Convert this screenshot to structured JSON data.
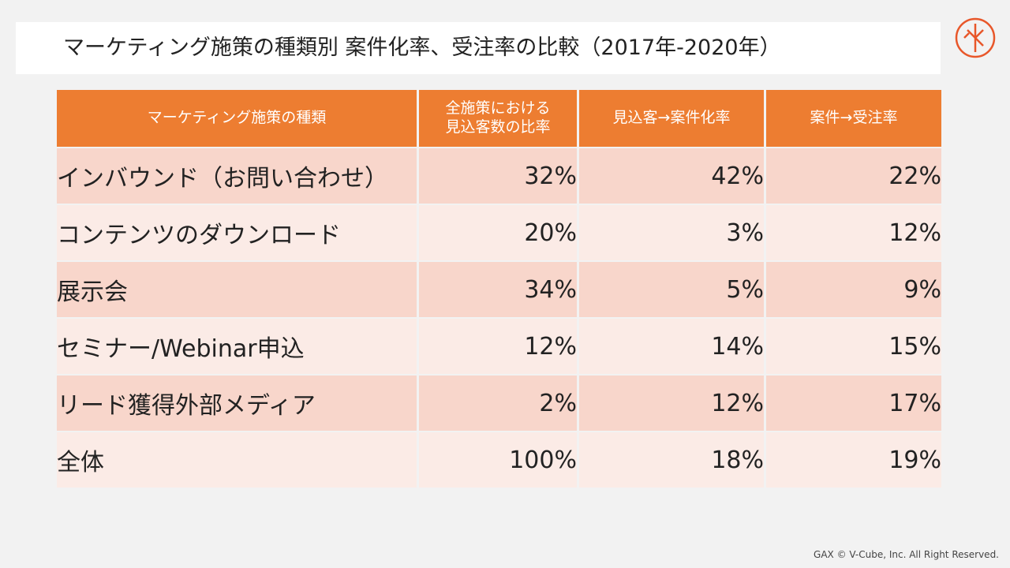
{
  "title": "マーケティング施策の種類別 案件化率、受注率の比較（2017年-2020年）",
  "logo": {
    "icon": "circle-monogram-logo",
    "color": "#e8572a"
  },
  "table": {
    "headers": [
      "マーケティング施策の種類",
      "全施策における見込客数の比率",
      "見込客→案件化率",
      "案件→受注率"
    ],
    "header_lines": [
      [
        "マーケティング施策の種類"
      ],
      [
        "全施策における",
        "見込客数の比率"
      ],
      [
        "見込客→案件化率"
      ],
      [
        "案件→受注率"
      ]
    ],
    "rows": [
      {
        "name": "インバウンド（お問い合わせ）",
        "share": "32%",
        "deal_rate": "42%",
        "win_rate": "22%"
      },
      {
        "name": "コンテンツのダウンロード",
        "share": "20%",
        "deal_rate": "3%",
        "win_rate": "12%"
      },
      {
        "name": "展示会",
        "share": "34%",
        "deal_rate": "5%",
        "win_rate": "9%"
      },
      {
        "name": "セミナー/Webinar申込",
        "share": "12%",
        "deal_rate": "14%",
        "win_rate": "15%"
      },
      {
        "name": "リード獲得外部メディア",
        "share": "2%",
        "deal_rate": "12%",
        "win_rate": "17%"
      },
      {
        "name": "全体",
        "share": "100%",
        "deal_rate": "18%",
        "win_rate": "19%"
      }
    ]
  },
  "colors": {
    "header_bg": "#ed7d31",
    "row_odd": "#f8d6cb",
    "row_even": "#fbebe6"
  },
  "footer": "GAX © V-Cube, Inc. All Right Reserved."
}
